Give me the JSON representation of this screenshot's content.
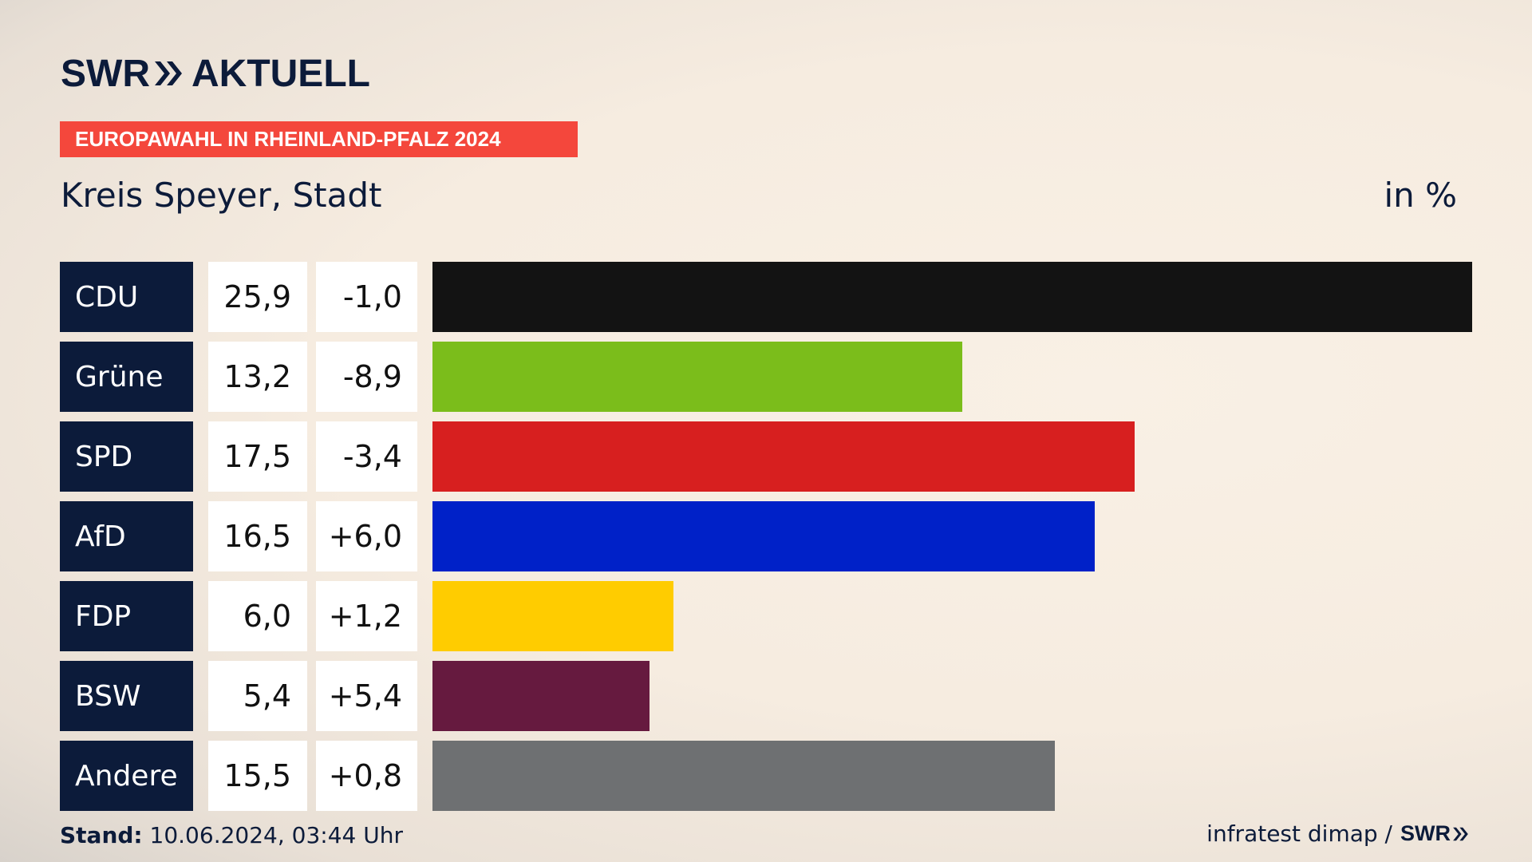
{
  "header": {
    "logo_left": "SWR",
    "logo_right": "AKTUELL",
    "banner": "EUROPAWAHL IN RHEINLAND-PFALZ 2024",
    "subtitle": "Kreis Speyer, Stadt",
    "unit": "in %"
  },
  "footer": {
    "stand_label": "Stand:",
    "stand_value": "10.06.2024, 03:44 Uhr",
    "source": "infratest dimap /",
    "source_logo": "SWR"
  },
  "chart_data": {
    "type": "bar",
    "orientation": "horizontal",
    "categories": [
      "CDU",
      "Grüne",
      "SPD",
      "AfD",
      "FDP",
      "BSW",
      "Andere"
    ],
    "values": [
      25.9,
      13.2,
      17.5,
      16.5,
      6.0,
      5.4,
      15.5
    ],
    "value_labels": [
      "25,9",
      "13,2",
      "17,5",
      "16,5",
      "6,0",
      "5,4",
      "15,5"
    ],
    "change_labels": [
      "-1,0",
      "-8,9",
      "-3,4",
      "+6,0",
      "+1,2",
      "+5,4",
      "+0,8"
    ],
    "changes": [
      -1.0,
      -8.9,
      -3.4,
      6.0,
      1.2,
      5.4,
      0.8
    ],
    "colors": [
      "#131313",
      "#7bbd1b",
      "#d71f1f",
      "#0021c8",
      "#ffcc00",
      "#661a3f",
      "#6e7072"
    ],
    "xlim": [
      0,
      25.9
    ],
    "title": "Kreis Speyer, Stadt",
    "unit": "in %"
  }
}
